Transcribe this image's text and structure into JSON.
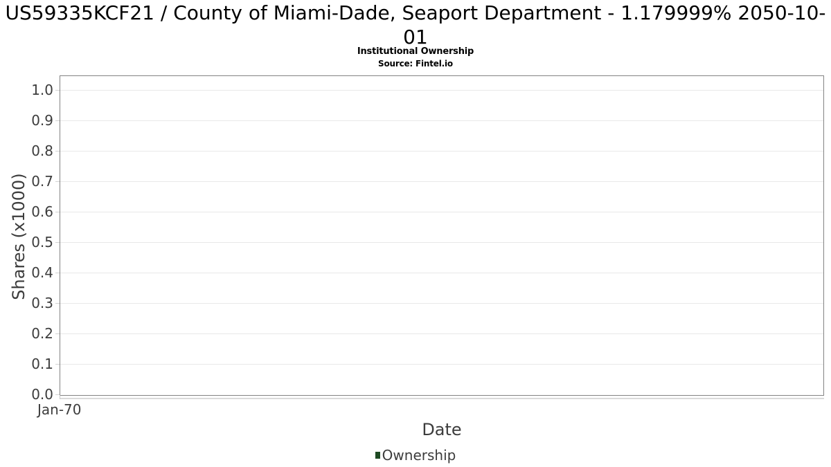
{
  "header": {
    "title_line1": "US59335KCF21 / County of Miami-Dade, Seaport Department - 1.179999% 2050-10-",
    "title_line2": "01",
    "subtitle": "Institutional Ownership",
    "source": "Source: Fintel.io"
  },
  "chart_data": {
    "type": "line",
    "title": "US59335KCF21 / County of Miami-Dade, Seaport Department - 1.179999% 2050-10-01",
    "subtitle": "Institutional Ownership",
    "source": "Source: Fintel.io",
    "xlabel": "Date",
    "ylabel": "Shares (x1000)",
    "x_ticks": [
      "Jan-70"
    ],
    "y_ticks": [
      "0.0",
      "0.1",
      "0.2",
      "0.3",
      "0.4",
      "0.5",
      "0.6",
      "0.7",
      "0.8",
      "0.9",
      "1.0"
    ],
    "ylim": [
      0.0,
      1.045
    ],
    "grid": "horizontal-only",
    "legend_position": "bottom-center",
    "series": [
      {
        "name": "Ownership",
        "color": "#1e4a23",
        "x": [],
        "values": []
      }
    ],
    "plot_is_empty": true
  },
  "legend": {
    "label": "Ownership",
    "color": "#1e4a23"
  },
  "colors": {
    "plot_border": "#828282",
    "gridline": "#e8e8e8",
    "tick_mark": "#d2d2d2",
    "axis_text": "#3c3c3c",
    "title_text": "#000000",
    "series_green": "#1e4a23"
  }
}
